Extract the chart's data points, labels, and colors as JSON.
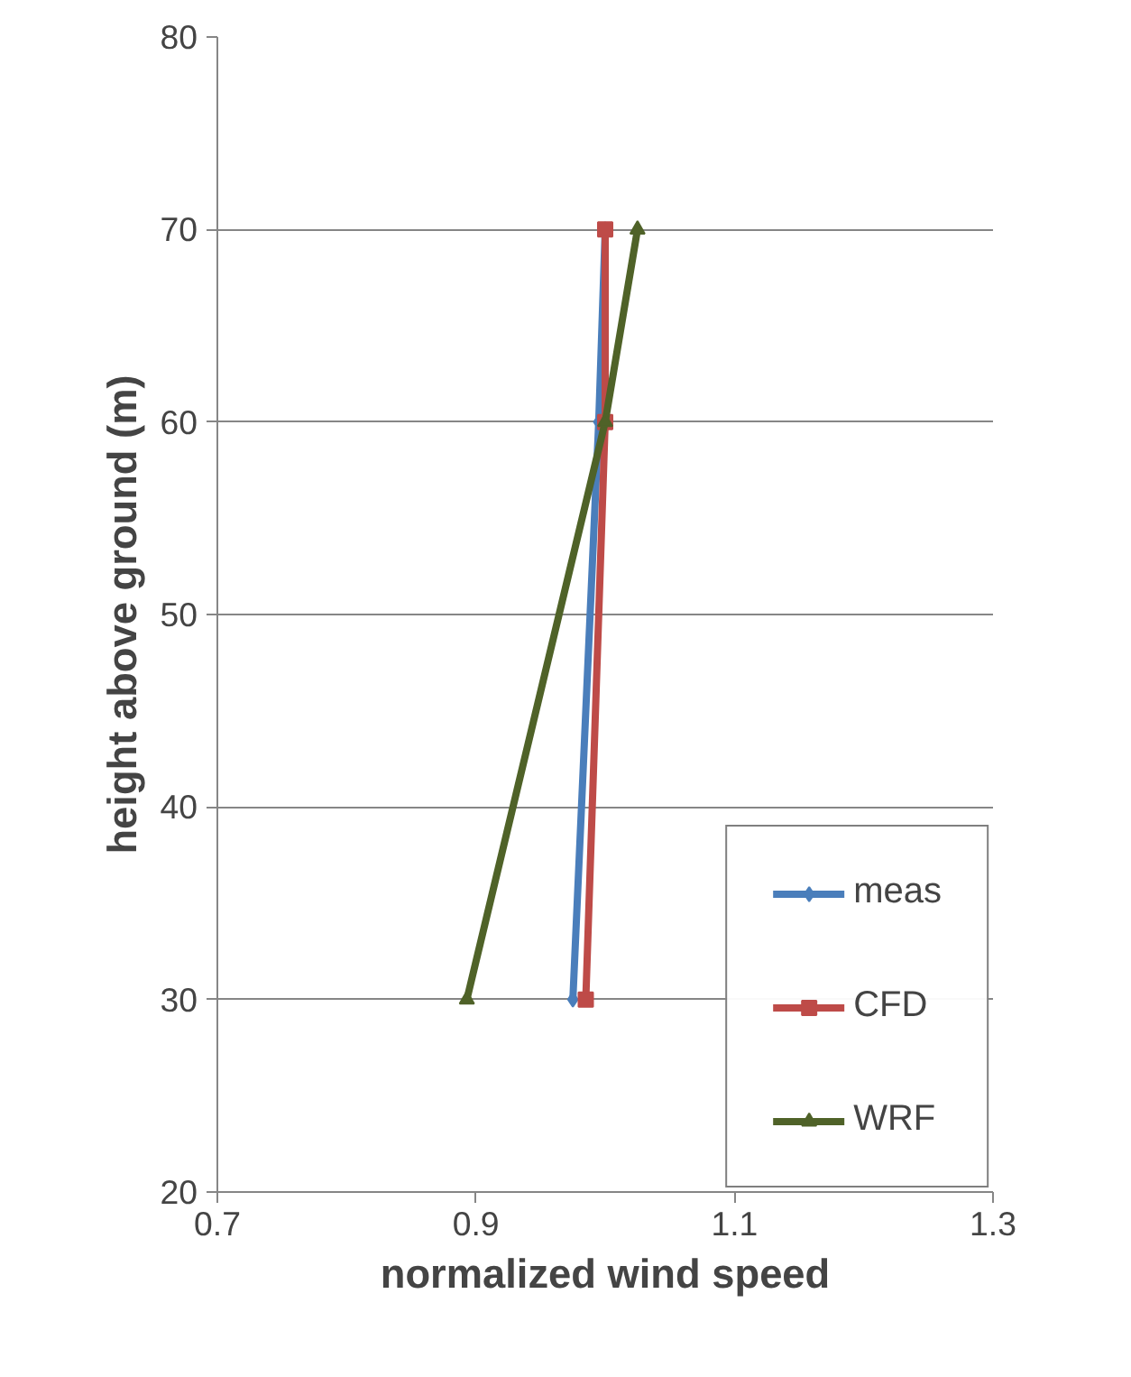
{
  "chart_data": {
    "type": "line",
    "xlabel": "normalized wind speed",
    "ylabel": "height above ground (m)",
    "xlim": [
      0.7,
      1.3
    ],
    "xticks": [
      0.7,
      0.9,
      1.1,
      1.3
    ],
    "ylim": [
      20,
      80
    ],
    "yticks": [
      20,
      30,
      40,
      50,
      60,
      70,
      80
    ],
    "grid": "y",
    "legend": "bottom right",
    "line_style": "solid",
    "series": [
      {
        "name": "meas",
        "color": "#4a7ebb",
        "marker": "diamond",
        "x": [
          0.975,
          0.995,
          1.0
        ],
        "values": [
          30,
          60,
          70
        ]
      },
      {
        "name": "CFD",
        "color": "#be4b48",
        "marker": "square",
        "x": [
          0.985,
          1.0,
          1.0
        ],
        "values": [
          30,
          60,
          70
        ]
      },
      {
        "name": "WRF",
        "color": "#4f6228",
        "marker": "triangle",
        "x": [
          0.893,
          1.0,
          1.025
        ],
        "values": [
          30,
          60,
          70
        ]
      }
    ]
  }
}
